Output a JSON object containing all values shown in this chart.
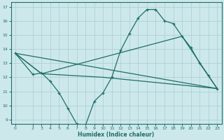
{
  "xlabel": "Humidex (Indice chaleur)",
  "xlim": [
    -0.5,
    23.5
  ],
  "ylim": [
    8.7,
    17.3
  ],
  "yticks": [
    9,
    10,
    11,
    12,
    13,
    14,
    15,
    16,
    17
  ],
  "xticks": [
    0,
    2,
    3,
    4,
    5,
    6,
    7,
    8,
    9,
    10,
    11,
    12,
    13,
    14,
    15,
    16,
    17,
    18,
    19,
    20,
    21,
    22,
    23
  ],
  "bg_color": "#cde8eb",
  "line_color": "#1e6e68",
  "line1_x": [
    0,
    2,
    3,
    4,
    5,
    6,
    7,
    8,
    9,
    10,
    11,
    12,
    13,
    14,
    15,
    16,
    17,
    18,
    19,
    20,
    21,
    22,
    23
  ],
  "line1_y": [
    13.7,
    12.2,
    12.3,
    11.7,
    10.9,
    9.8,
    8.7,
    8.6,
    10.3,
    10.9,
    12.0,
    13.9,
    15.1,
    16.2,
    16.8,
    16.8,
    16.0,
    15.8,
    14.9,
    14.1,
    13.0,
    12.1,
    11.2
  ],
  "line2_x": [
    0,
    23
  ],
  "line2_y": [
    13.7,
    11.2
  ],
  "line3_x": [
    0,
    3,
    19,
    23
  ],
  "line3_y": [
    13.7,
    12.25,
    14.9,
    11.2
  ],
  "line4_x": [
    0,
    3,
    10,
    23
  ],
  "line4_y": [
    13.7,
    12.25,
    12.0,
    11.2
  ]
}
